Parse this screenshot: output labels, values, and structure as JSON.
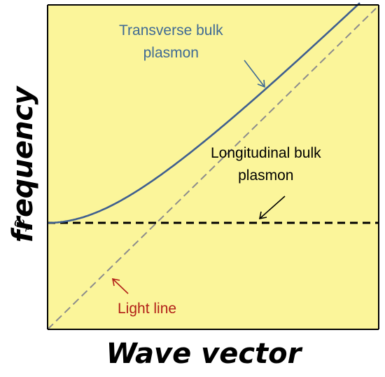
{
  "figure": {
    "y_axis_label": "frequency",
    "x_axis_label": "Wave vector",
    "omega_p_symbol": "ω",
    "omega_p_subscript": "p"
  },
  "annotations": {
    "transverse_line1": "Transverse bulk",
    "transverse_line2": "plasmon",
    "longitudinal_line1": "Longitudinal bulk",
    "longitudinal_line2": "plasmon",
    "light_line": "Light line"
  },
  "colors": {
    "plot_background": "#fbf59a",
    "transverse_curve": "#3f5f8f",
    "transverse_text": "#3f6a94",
    "light_line": "#8c8c8c",
    "light_line_text": "#b22018",
    "longitudinal": "#000000"
  },
  "chart_data": {
    "type": "line",
    "title": "",
    "xlabel": "Wave vector",
    "ylabel": "frequency",
    "y_tick_labels": [
      "ωp"
    ],
    "grid": false,
    "series": [
      {
        "name": "Transverse bulk plasmon",
        "style": "solid"
      },
      {
        "name": "Longitudinal bulk plasmon",
        "style": "dashed",
        "shape": "horizontal at ωp"
      },
      {
        "name": "Light line",
        "style": "dashed",
        "shape": "straight line through origin"
      }
    ]
  }
}
